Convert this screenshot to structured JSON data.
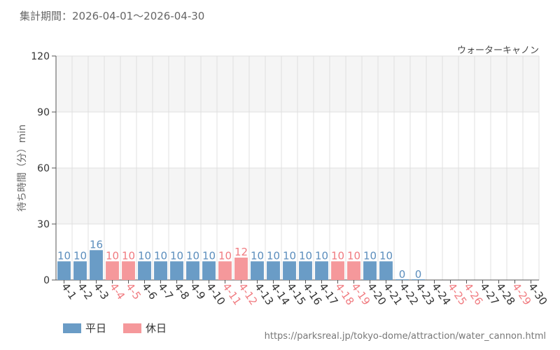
{
  "period_label": "集計期間：2026-04-01〜2026-04-30",
  "attraction_name": "ウォーターキャノン",
  "source_url": "https://parksreal.jp/tokyo-dome/attraction/water_cannon.html",
  "colors": {
    "weekday": "#6a9cc6",
    "holiday": "#f5989b",
    "weekday_text": "#5c8ebd",
    "holiday_text": "#f07b80",
    "band": "#f5f5f5",
    "grid": "#e0e0e0"
  },
  "legend": [
    {
      "label": "平日",
      "color_key": "weekday"
    },
    {
      "label": "休日",
      "color_key": "holiday"
    }
  ],
  "chart_data": {
    "type": "bar",
    "title": "",
    "xlabel": "",
    "ylabel": "待ち時間（分）min",
    "ylim": [
      0,
      120
    ],
    "yticks": [
      0,
      30,
      60,
      90,
      120
    ],
    "grid": true,
    "legend_position": "bottom-left",
    "categories": [
      "4-1",
      "4-2",
      "4-3",
      "4-4",
      "4-5",
      "4-6",
      "4-7",
      "4-8",
      "4-9",
      "4-10",
      "4-11",
      "4-12",
      "4-13",
      "4-14",
      "4-15",
      "4-16",
      "4-17",
      "4-18",
      "4-19",
      "4-20",
      "4-21",
      "4-22",
      "4-23",
      "4-24",
      "4-25",
      "4-26",
      "4-27",
      "4-28",
      "4-29",
      "4-30"
    ],
    "values": [
      10,
      10,
      16,
      10,
      10,
      10,
      10,
      10,
      10,
      10,
      10,
      12,
      10,
      10,
      10,
      10,
      10,
      10,
      10,
      10,
      10,
      0,
      0,
      null,
      null,
      null,
      null,
      null,
      null,
      null
    ],
    "day_type": [
      "平日",
      "平日",
      "平日",
      "休日",
      "休日",
      "平日",
      "平日",
      "平日",
      "平日",
      "平日",
      "休日",
      "休日",
      "平日",
      "平日",
      "平日",
      "平日",
      "平日",
      "休日",
      "休日",
      "平日",
      "平日",
      "平日",
      "平日",
      "平日",
      "休日",
      "休日",
      "平日",
      "平日",
      "休日",
      "平日"
    ],
    "series": [
      {
        "name": "平日",
        "color_key": "weekday"
      },
      {
        "name": "休日",
        "color_key": "holiday"
      }
    ]
  }
}
